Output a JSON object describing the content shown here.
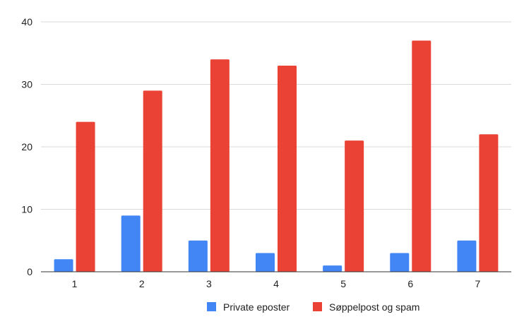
{
  "chart_data": {
    "type": "bar",
    "categories": [
      "1",
      "2",
      "3",
      "4",
      "5",
      "6",
      "7"
    ],
    "series": [
      {
        "name": "Private eposter",
        "values": [
          2,
          9,
          5,
          3,
          1,
          3,
          5
        ],
        "color": "#4285f4"
      },
      {
        "name": "Søppelpost og spam",
        "values": [
          24,
          29,
          34,
          33,
          21,
          37,
          22
        ],
        "color": "#ea4335"
      }
    ],
    "title": "",
    "xlabel": "",
    "ylabel": "",
    "ylim": [
      0,
      40
    ],
    "yticks": [
      "0",
      "10",
      "20",
      "30",
      "40"
    ],
    "grid": true,
    "legend_position": "bottom-right"
  }
}
